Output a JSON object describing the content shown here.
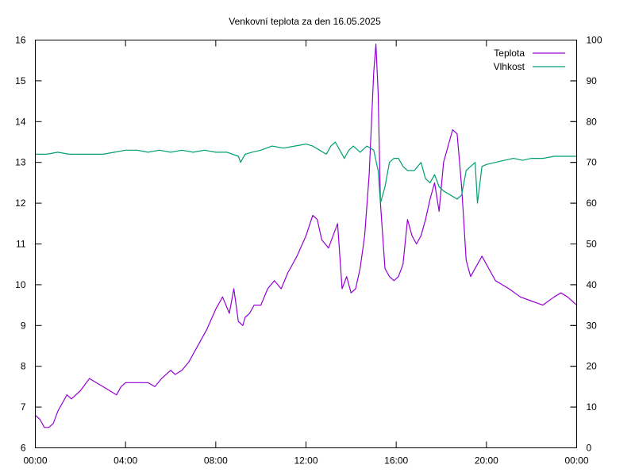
{
  "chart_data": {
    "type": "line",
    "title": "Venkovní teplota za den 16.05.2025",
    "xlabel": "",
    "ylabel": "",
    "y2label": "",
    "x_ticks": [
      "00:00",
      "04:00",
      "08:00",
      "12:00",
      "16:00",
      "20:00",
      "00:00"
    ],
    "xlim": [
      0,
      24
    ],
    "ylim": [
      6,
      16
    ],
    "y_ticks": [
      "6",
      "7",
      "8",
      "9",
      "10",
      "11",
      "12",
      "13",
      "14",
      "15",
      "16"
    ],
    "y2lim": [
      0,
      100
    ],
    "y2_ticks": [
      "0",
      "10",
      "20",
      "30",
      "40",
      "50",
      "60",
      "70",
      "80",
      "90",
      "100"
    ],
    "grid": false,
    "legend_position": "top-right",
    "series": [
      {
        "name": "Teplota",
        "axis": "left",
        "color": "#9400d3",
        "x": [
          0,
          0.2,
          0.4,
          0.6,
          0.8,
          1.0,
          1.2,
          1.4,
          1.6,
          2.0,
          2.4,
          2.7,
          3.0,
          3.3,
          3.6,
          3.8,
          4.0,
          4.5,
          5.0,
          5.3,
          5.6,
          6.0,
          6.2,
          6.5,
          6.8,
          7.0,
          7.3,
          7.6,
          8.0,
          8.3,
          8.6,
          8.8,
          9.0,
          9.2,
          9.3,
          9.5,
          9.7,
          10.0,
          10.3,
          10.6,
          10.9,
          11.2,
          11.6,
          12.0,
          12.3,
          12.5,
          12.7,
          13.0,
          13.2,
          13.4,
          13.6,
          13.8,
          14.0,
          14.2,
          14.4,
          14.6,
          14.8,
          15.0,
          15.1,
          15.2,
          15.3,
          15.5,
          15.7,
          15.9,
          16.1,
          16.3,
          16.5,
          16.7,
          16.9,
          17.1,
          17.3,
          17.5,
          17.7,
          17.9,
          18.1,
          18.3,
          18.5,
          18.7,
          18.9,
          19.1,
          19.3,
          19.5,
          19.8,
          20.0,
          20.2,
          20.4,
          20.7,
          21.0,
          21.5,
          22.0,
          22.5,
          23.0,
          23.3,
          23.6,
          24.0
        ],
        "values": [
          6.8,
          6.7,
          6.5,
          6.5,
          6.6,
          6.9,
          7.1,
          7.3,
          7.2,
          7.4,
          7.7,
          7.6,
          7.5,
          7.4,
          7.3,
          7.5,
          7.6,
          7.6,
          7.6,
          7.5,
          7.7,
          7.9,
          7.8,
          7.9,
          8.1,
          8.3,
          8.6,
          8.9,
          9.4,
          9.7,
          9.3,
          9.9,
          9.1,
          9.0,
          9.2,
          9.3,
          9.5,
          9.5,
          9.9,
          10.1,
          9.9,
          10.3,
          10.7,
          11.2,
          11.7,
          11.6,
          11.1,
          10.9,
          11.2,
          11.5,
          9.9,
          10.2,
          9.8,
          9.9,
          10.4,
          11.2,
          12.7,
          15.2,
          15.9,
          14.7,
          12.0,
          10.4,
          10.2,
          10.1,
          10.2,
          10.5,
          11.6,
          11.2,
          11.0,
          11.2,
          11.6,
          12.1,
          12.5,
          11.8,
          13.0,
          13.4,
          13.8,
          13.7,
          12.4,
          10.6,
          10.2,
          10.4,
          10.7,
          10.5,
          10.3,
          10.1,
          10.0,
          9.9,
          9.7,
          9.6,
          9.5,
          9.7,
          9.8,
          9.7,
          9.5
        ]
      },
      {
        "name": "Vlhkost",
        "axis": "right",
        "color": "#009e73",
        "x": [
          0,
          0.5,
          1.0,
          1.5,
          2.0,
          2.5,
          3.0,
          3.5,
          4.0,
          4.5,
          5.0,
          5.5,
          6.0,
          6.5,
          7.0,
          7.5,
          8.0,
          8.5,
          9.0,
          9.1,
          9.3,
          9.6,
          10.0,
          10.5,
          11.0,
          11.5,
          12.0,
          12.3,
          12.6,
          12.9,
          13.1,
          13.3,
          13.5,
          13.7,
          13.9,
          14.1,
          14.4,
          14.7,
          15.0,
          15.2,
          15.3,
          15.5,
          15.7,
          15.9,
          16.1,
          16.3,
          16.5,
          16.8,
          17.1,
          17.3,
          17.5,
          17.7,
          17.9,
          18.1,
          18.4,
          18.7,
          18.9,
          19.1,
          19.3,
          19.5,
          19.6,
          19.8,
          20.0,
          20.4,
          20.8,
          21.2,
          21.6,
          22.0,
          22.5,
          23.0,
          23.5,
          24.0
        ],
        "values": [
          72,
          72,
          72.5,
          72,
          72,
          72,
          72,
          72.5,
          73,
          73,
          72.5,
          73,
          72.5,
          73,
          72.5,
          73,
          72.5,
          72.5,
          71.5,
          70,
          72,
          72.5,
          73,
          74,
          73.5,
          74,
          74.5,
          74,
          73,
          72,
          74,
          75,
          73,
          71,
          73,
          74,
          72.5,
          74,
          73,
          68,
          60,
          64,
          70,
          71,
          71,
          69,
          68,
          68,
          70,
          66,
          65,
          67,
          64,
          63,
          62,
          61,
          62,
          68,
          69,
          70,
          60,
          69,
          69.5,
          70,
          70.5,
          71,
          70.5,
          71,
          71,
          71.5,
          71.5,
          71.5
        ]
      }
    ]
  }
}
